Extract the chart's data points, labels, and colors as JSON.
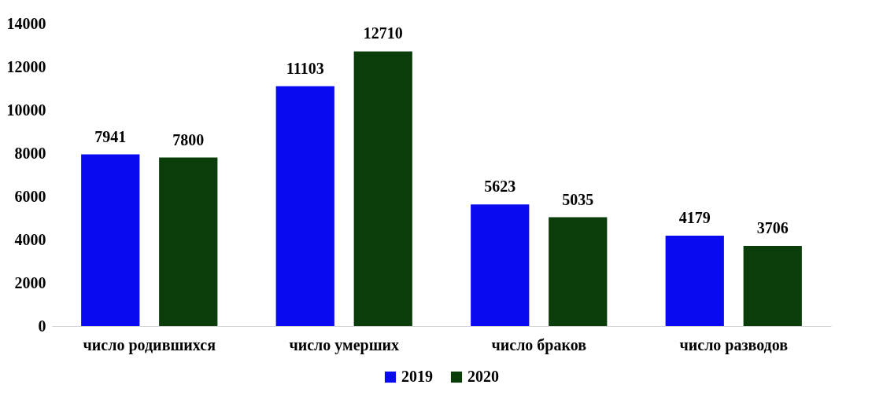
{
  "chart_data": {
    "type": "bar",
    "categories": [
      "число родившихся",
      "число умерших",
      "число браков",
      "число разводов"
    ],
    "series": [
      {
        "name": "2019",
        "color": "#0a0af0",
        "values": [
          7941,
          11103,
          5623,
          4179
        ]
      },
      {
        "name": "2020",
        "color": "#0b3d0b",
        "values": [
          7800,
          12710,
          5035,
          3706
        ]
      }
    ],
    "ylim": [
      0,
      14000
    ],
    "yticks": [
      0,
      2000,
      4000,
      6000,
      8000,
      10000,
      12000,
      14000
    ],
    "grid": false,
    "legend": "bottom",
    "data_labels": true
  }
}
